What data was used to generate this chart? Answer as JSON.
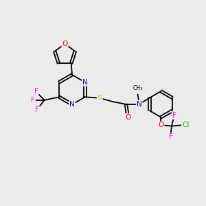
{
  "background_color": "#ebebeb",
  "bond_color": "#000000",
  "atom_colors": {
    "N": "#0000ee",
    "O": "#ff0000",
    "S": "#cccc00",
    "F": "#ff00ff",
    "Cl": "#00bb00",
    "C": "#000000"
  },
  "lw": 1.3,
  "fontsize": 7.5
}
